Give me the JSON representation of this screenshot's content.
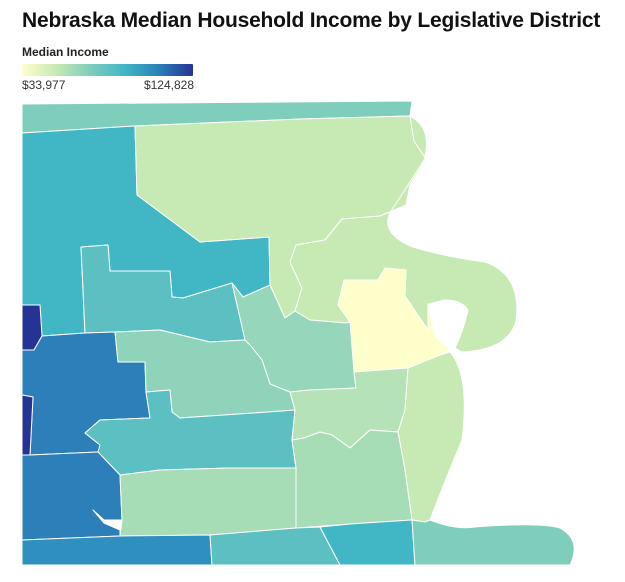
{
  "title": "Nebraska Median Household Income by Legislative District",
  "legend": {
    "title": "Median Income",
    "min_label": "$33,977",
    "max_label": "$124,828",
    "gradient": [
      "#ffffcc",
      "#c7e9b4",
      "#7fcdbb",
      "#41b6c4",
      "#2c7fb8",
      "#253494"
    ]
  },
  "colors": {
    "background": "#ffffff",
    "border": "#ffffff",
    "water": "#ffffff"
  },
  "districts": [
    {
      "id": "top-strip",
      "color": "#7fcdbb"
    },
    {
      "id": "northwest",
      "color": "#41b6c4"
    },
    {
      "id": "north-central",
      "color": "#c7e9b4"
    },
    {
      "id": "northeast-river",
      "color": "#c7e9b4"
    },
    {
      "id": "downtown-core",
      "color": "#ffffcc"
    },
    {
      "id": "central-northwest",
      "color": "#5cbfc1"
    },
    {
      "id": "central",
      "color": "#96d6bb"
    },
    {
      "id": "west-dark",
      "color": "#253494"
    },
    {
      "id": "west-blue",
      "color": "#2c7fb8"
    },
    {
      "id": "southwest-dark",
      "color": "#253494"
    },
    {
      "id": "west-center",
      "color": "#8fd3bb"
    },
    {
      "id": "center-south",
      "color": "#5cbfc1"
    },
    {
      "id": "south-center",
      "color": "#b6e2b7"
    },
    {
      "id": "southeast",
      "color": "#c7e9b4"
    },
    {
      "id": "southwest-blue",
      "color": "#2c7fb8"
    },
    {
      "id": "south-lower",
      "color": "#a6dcb6"
    },
    {
      "id": "far-southwest",
      "color": "#2f8fbe"
    },
    {
      "id": "bottom-teal",
      "color": "#5cbfc1"
    },
    {
      "id": "bottom-mid",
      "color": "#41b6c4"
    },
    {
      "id": "bottom-east",
      "color": "#7fcdbb"
    }
  ]
}
